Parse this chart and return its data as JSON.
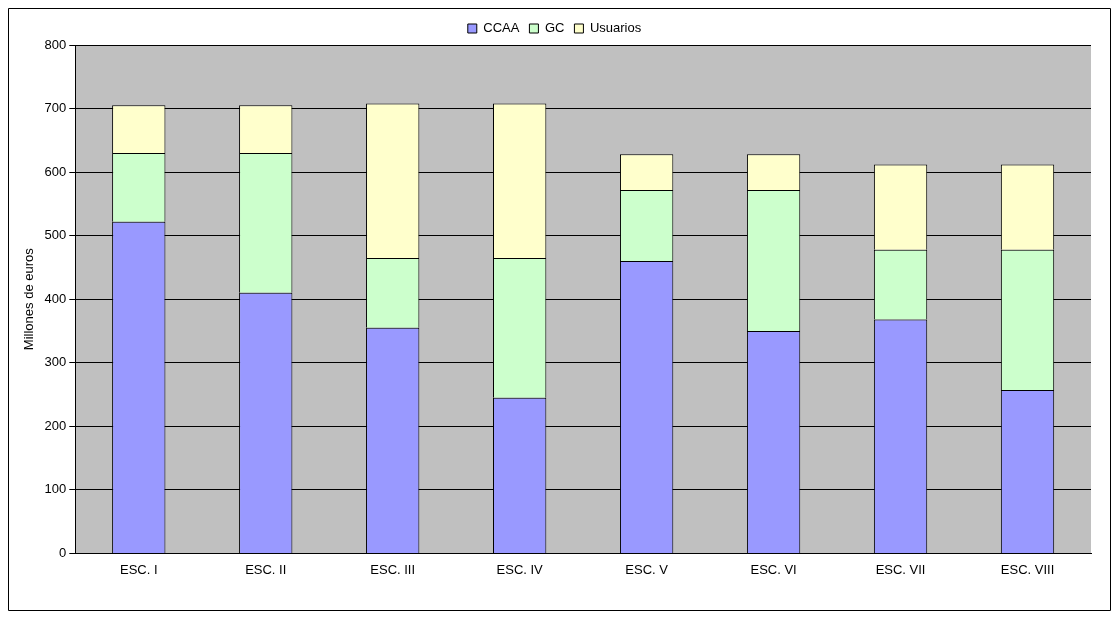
{
  "chart_data": {
    "type": "bar",
    "stacked": true,
    "ylabel": "Millones de euros",
    "categories": [
      "ESC. I",
      "ESC. II",
      "ESC. III",
      "ESC. IV",
      "ESC. V",
      "ESC. VI",
      "ESC. VII",
      "ESC. VIII"
    ],
    "series": [
      {
        "name": "CCAA",
        "color": "#9999ff",
        "values": [
          522,
          410,
          355,
          245,
          460,
          350,
          368,
          257
        ]
      },
      {
        "name": "GC",
        "color": "#ccffcc",
        "values": [
          108,
          220,
          110,
          220,
          112,
          222,
          110,
          221
        ]
      },
      {
        "name": "Usuarios",
        "color": "#ffffcc",
        "values": [
          75,
          75,
          243,
          243,
          56,
          56,
          134,
          134
        ]
      }
    ],
    "ylim": [
      0,
      800
    ],
    "yticks": [
      0,
      100,
      200,
      300,
      400,
      500,
      600,
      700,
      800
    ],
    "grid": "y",
    "legend": "top"
  }
}
